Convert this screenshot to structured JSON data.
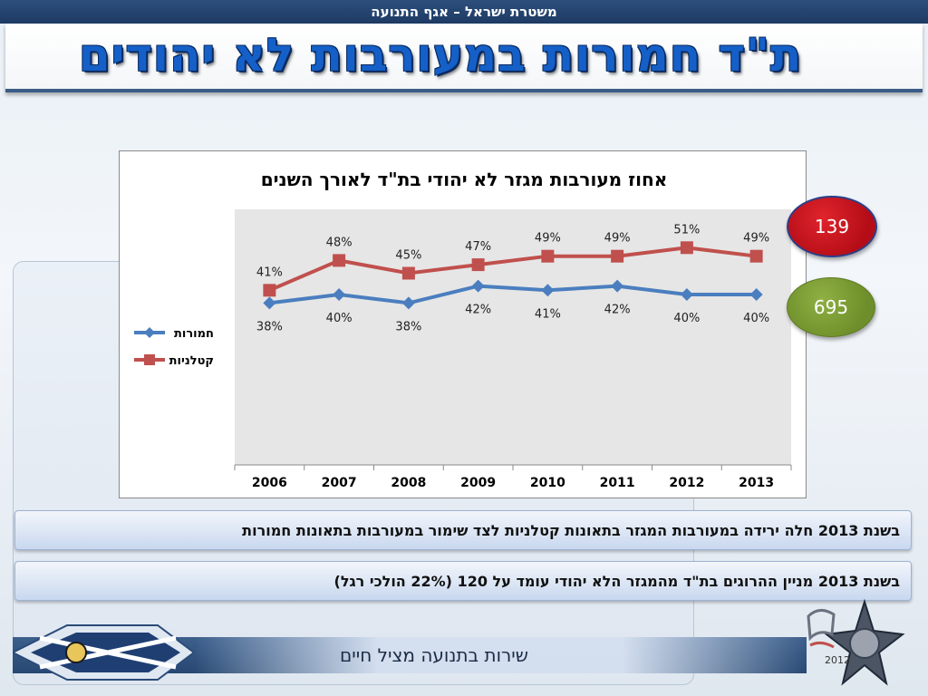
{
  "header": {
    "org_line": "משטרת ישראל – אגף התנועה",
    "title": "ת\"ד חמורות במעורבות לא יהודים"
  },
  "badges": {
    "red_value": "139",
    "green_value": "695"
  },
  "notes": [
    "בשנת 2013 חלה ירידה במעורבות המגזר בתאונות קטלניות לצד שימור במעורבות בתאונות חמורות",
    "בשנת 2013 מניין ההרוגים בת\"ד מהמגזר הלא יהודי עומד על 120 (22% הולכי רגל)"
  ],
  "footer": {
    "slogan": "שירות בתנועה מציל חיים",
    "logo_year": "2012"
  },
  "colors": {
    "severe": "#4a7ebf",
    "fatal": "#c0504d",
    "plot_bg": "#e6e6e6"
  },
  "chart_data": {
    "type": "line",
    "title": "אחוז מעורבות מגזר לא יהודי בת\"ד לאורך השנים",
    "xlabel": "",
    "ylabel": "",
    "categories": [
      "2006",
      "2007",
      "2008",
      "2009",
      "2010",
      "2011",
      "2012",
      "2013"
    ],
    "ylim": [
      0,
      0.6
    ],
    "legend_position": "left",
    "grid": false,
    "series": [
      {
        "name": "חמורות",
        "values": [
          38,
          40,
          38,
          42,
          41,
          42,
          40,
          40
        ],
        "labels": [
          "38%",
          "40%",
          "38%",
          "42%",
          "41%",
          "42%",
          "40%",
          "40%"
        ],
        "marker": "diamond"
      },
      {
        "name": "קטלניות",
        "values": [
          41,
          48,
          45,
          47,
          49,
          49,
          51,
          49
        ],
        "labels": [
          "41%",
          "48%",
          "45%",
          "47%",
          "49%",
          "49%",
          "51%",
          "49%"
        ],
        "marker": "square"
      }
    ]
  }
}
